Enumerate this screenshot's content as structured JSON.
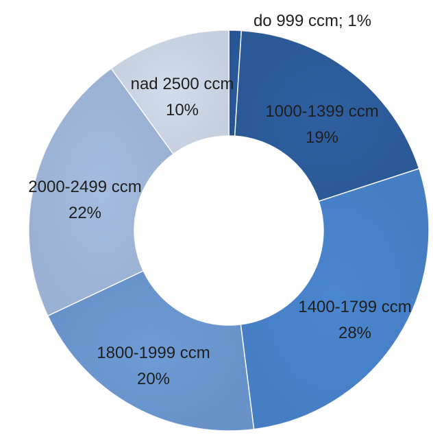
{
  "chart_data": {
    "type": "pie",
    "variant": "donut",
    "title": "",
    "legend": "none",
    "series": [
      {
        "values": [
          1,
          19,
          28,
          20,
          22,
          10
        ]
      }
    ],
    "categories": [
      "do 999 ccm",
      "1000-1399 ccm",
      "1400-1799 ccm",
      "1800-1999 ccm",
      "2000-2499 ccm",
      "nad 2500 ccm"
    ],
    "data_labels": [
      {
        "line1": "do 999 ccm; 1%",
        "line2": ""
      },
      {
        "line1": "1000-1399 ccm",
        "line2": "19%"
      },
      {
        "line1": "1400-1799 ccm",
        "line2": "28%"
      },
      {
        "line1": "1800-1999 ccm",
        "line2": "20%"
      },
      {
        "line1": "2000-2499 ccm",
        "line2": "22%"
      },
      {
        "line1": "nad 2500 ccm",
        "line2": "10%"
      }
    ],
    "colors": [
      "#2a5a9c",
      "#2e5fa0",
      "#4a86cf",
      "#6e9bd6",
      "#a4bce0",
      "#d2ddec"
    ]
  }
}
